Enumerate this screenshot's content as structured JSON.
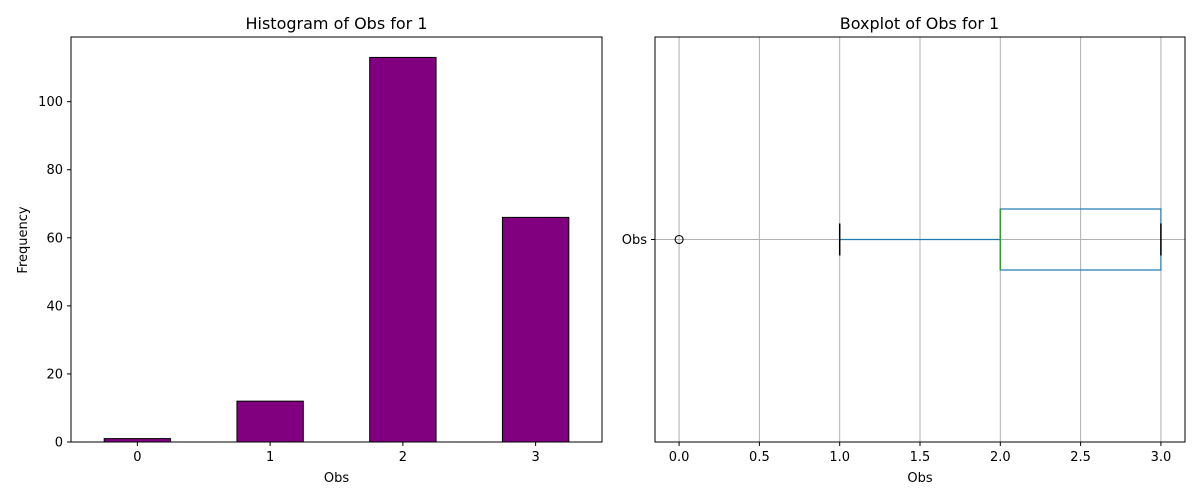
{
  "chart_data": [
    {
      "type": "bar",
      "title": "Histogram of Obs for 1",
      "xlabel": "Obs",
      "ylabel": "Frequency",
      "categories": [
        "0",
        "1",
        "2",
        "3"
      ],
      "values": [
        1,
        12,
        113,
        66
      ],
      "ylim": [
        0,
        119
      ],
      "yticks": [
        0,
        20,
        40,
        60,
        80,
        100
      ],
      "grid": false,
      "colors": {
        "bar": "#800080",
        "edge": "#000000"
      }
    },
    {
      "type": "boxplot",
      "title": "Boxplot of Obs for 1",
      "xlabel": "Obs",
      "category": "Obs",
      "xlim": [
        -0.15,
        3.15
      ],
      "xticks": [
        "0.0",
        "0.5",
        "1.0",
        "1.5",
        "2.0",
        "2.5",
        "3.0"
      ],
      "stats": {
        "whisker_low": 1,
        "q1": 2,
        "median": 2,
        "q3": 3,
        "whisker_high": 3,
        "outliers": [
          0
        ]
      },
      "grid": true,
      "colors": {
        "box": "#1f77b4",
        "median": "#2ca02c",
        "grid": "#b0b0b0"
      }
    }
  ]
}
